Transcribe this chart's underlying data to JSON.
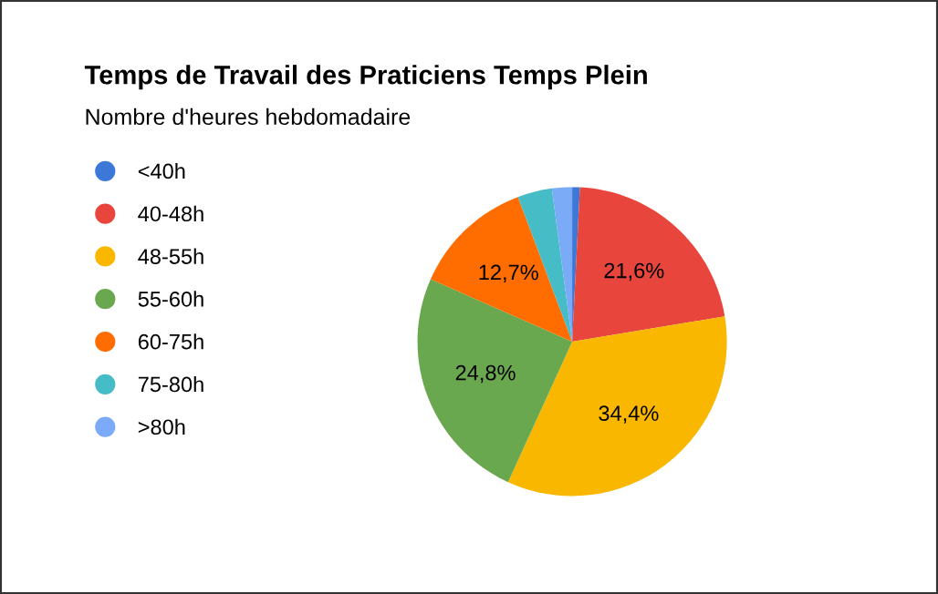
{
  "chart_data": {
    "type": "pie",
    "title": "Temps de Travail des Praticiens Temps Plein",
    "subtitle": "Nombre d'heures hebdomadaire",
    "categories": [
      "<40h",
      "40-48h",
      "48-55h",
      "55-60h",
      "60-75h",
      "75-80h",
      ">80h"
    ],
    "values": [
      0.8,
      21.6,
      34.4,
      24.8,
      12.7,
      3.6,
      2.1
    ],
    "colors": [
      "#3d78d8",
      "#e8453c",
      "#f9b700",
      "#6aa84f",
      "#ff6d01",
      "#46bdc6",
      "#7baaf7"
    ],
    "value_labels": [
      null,
      "21,6%",
      "34,4%",
      "24,8%",
      "12,7%",
      null,
      null
    ],
    "legend": "left"
  }
}
